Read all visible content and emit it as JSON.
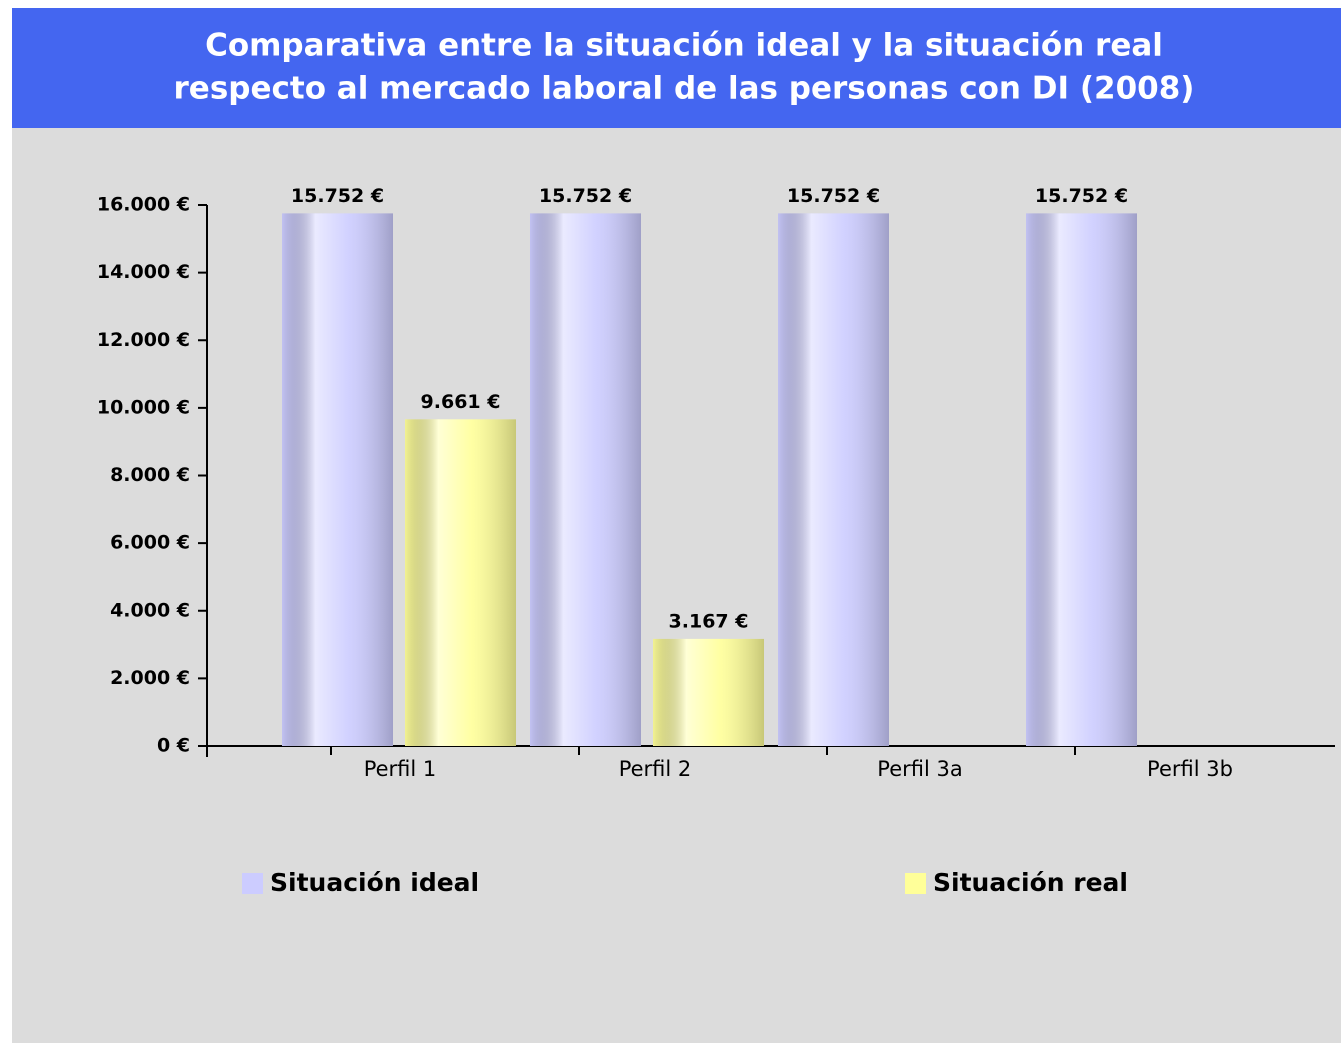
{
  "chart_data": {
    "type": "bar",
    "title_lines": [
      "Comparativa entre la situación ideal y la situación real",
      "respecto al mercado laboral de las personas con DI  (2008)"
    ],
    "categories": [
      "Perfil 1",
      "Perfil 2",
      "Perfil 3a",
      "Perfil 3b"
    ],
    "series": [
      {
        "name": "Situación ideal",
        "color": "#ccccff",
        "values": [
          15752,
          15752,
          15752,
          15752
        ],
        "value_labels": [
          "15.752 €",
          "15.752 €",
          "15.752 €",
          "15.752 €"
        ]
      },
      {
        "name": "Situación real",
        "color": "#ffff99",
        "values": [
          9661,
          3167,
          null,
          null
        ],
        "value_labels": [
          "9.661 €",
          "3.167 €",
          null,
          null
        ]
      }
    ],
    "ylim": [
      0,
      16000
    ],
    "yticks": [
      {
        "value": 0,
        "label": "0 €"
      },
      {
        "value": 2000,
        "label": "2.000 €"
      },
      {
        "value": 4000,
        "label": "4.000 €"
      },
      {
        "value": 6000,
        "label": "6.000 €"
      },
      {
        "value": 8000,
        "label": "8.000 €"
      },
      {
        "value": 10000,
        "label": "10.000 €"
      },
      {
        "value": 12000,
        "label": "12.000 €"
      },
      {
        "value": 14000,
        "label": "14.000 €"
      },
      {
        "value": 16000,
        "label": "16.000 €"
      }
    ],
    "legend": "bottom"
  }
}
